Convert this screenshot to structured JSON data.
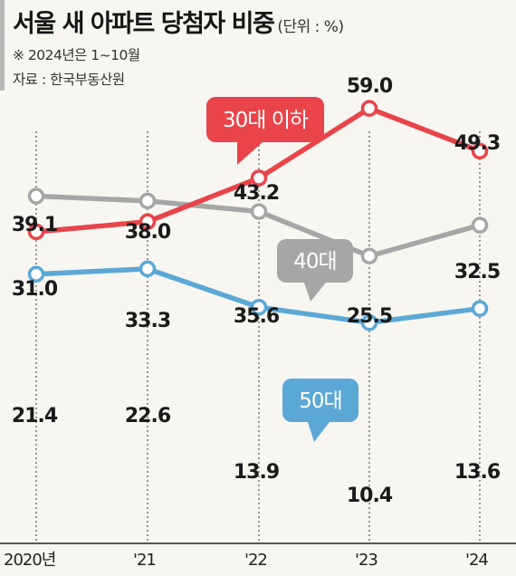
{
  "header": {
    "title": "서울 새 아파트 당첨자 비중",
    "unit": "(단위 : %)",
    "note": "※ 2024년은 1~10월",
    "source": "자료 : 한국부동산원"
  },
  "colors": {
    "series_30": "#e8444a",
    "series_40": "#a6a6a6",
    "series_50": "#5ba8d6",
    "background": "#f7f6f1",
    "text": "#222222"
  },
  "chart_data": {
    "type": "line",
    "categories": [
      "2020년",
      "'21",
      "'22",
      "'23",
      "'24"
    ],
    "series": [
      {
        "name": "30대 이하",
        "values": [
          31.0,
          33.3,
          43.2,
          59.0,
          49.3
        ],
        "labels": [
          "31.0",
          "33.3",
          "43.2",
          "59.0",
          "49.3"
        ],
        "color": "#e8444a"
      },
      {
        "name": "40대",
        "values": [
          39.1,
          38.0,
          35.6,
          25.5,
          32.5
        ],
        "labels": [
          "39.1",
          "38.0",
          "35.6",
          "25.5",
          "32.5"
        ],
        "color": "#a6a6a6"
      },
      {
        "name": "50대",
        "values": [
          21.4,
          22.6,
          13.9,
          10.4,
          13.6
        ],
        "labels": [
          "21.4",
          "22.6",
          "13.9",
          "10.4",
          "13.6"
        ],
        "color": "#5ba8d6"
      }
    ],
    "grid": "vertical dotted lines",
    "legend": "callout labels on lines"
  }
}
